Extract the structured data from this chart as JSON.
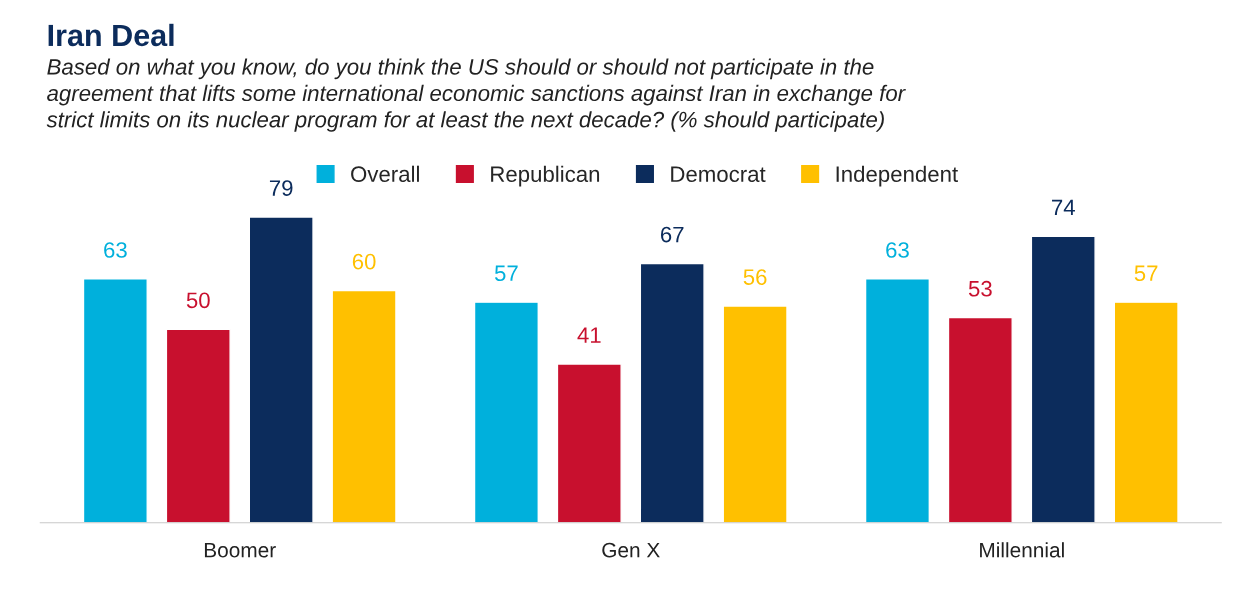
{
  "chart_data": {
    "type": "bar",
    "title": "Iran Deal",
    "subtitle": "Based on what you know, do you think the US should or should not participate in the\nagreement that lifts some international economic sanctions against Iran in exchange for\nstrict limits on its nuclear program for at least the next decade? (% should participate)",
    "categories": [
      "Boomer",
      "Gen X",
      "Millennial"
    ],
    "series": [
      {
        "name": "Overall",
        "color": "#00b0dc",
        "values": [
          63,
          57,
          63
        ]
      },
      {
        "name": "Republican",
        "color": "#c8102e",
        "values": [
          50,
          41,
          53
        ]
      },
      {
        "name": "Democrat",
        "color": "#0c2c5c",
        "values": [
          79,
          67,
          74
        ]
      },
      {
        "name": "Independent",
        "color": "#ffc000",
        "values": [
          60,
          56,
          57
        ]
      }
    ],
    "tick_labels": "x",
    "data_labels": true,
    "legend": "top",
    "grid": false
  }
}
